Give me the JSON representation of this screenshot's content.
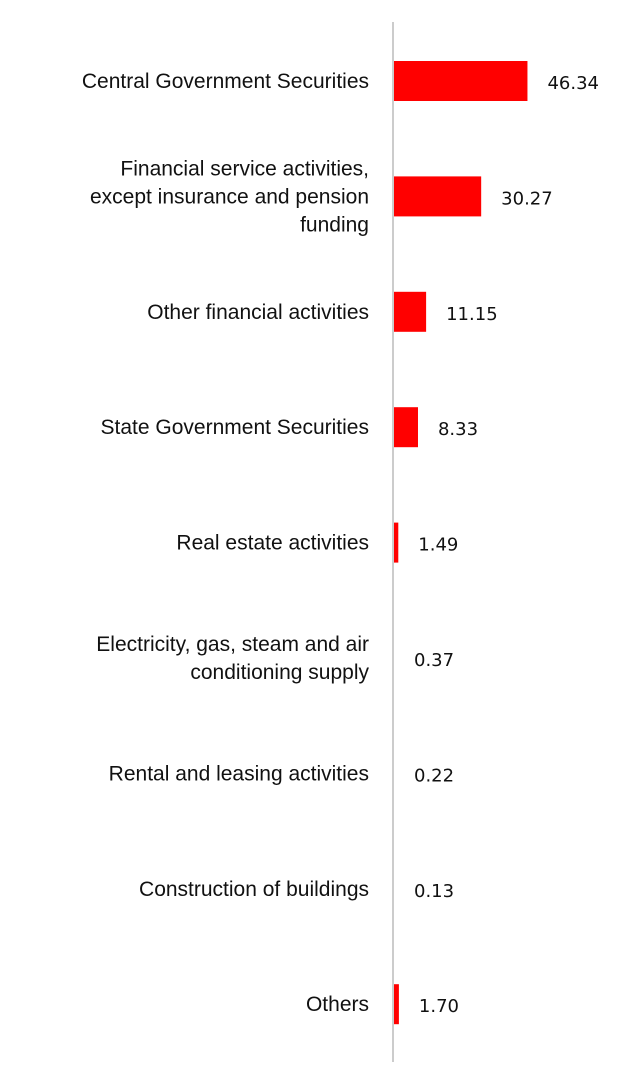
{
  "chart_data": {
    "type": "bar",
    "orientation": "horizontal",
    "title": "",
    "xlabel": "",
    "ylabel": "",
    "xlim": [
      0,
      50
    ],
    "grid": false,
    "legend": "none",
    "bar_color": "#ff0000",
    "axis_color": "#cccccc",
    "categories": [
      [
        "Central Government Securities"
      ],
      [
        "Financial service activities,",
        "except insurance and pension",
        "funding"
      ],
      [
        "Other financial activities"
      ],
      [
        "State Government Securities"
      ],
      [
        "Real estate activities"
      ],
      [
        "Electricity, gas, steam and air",
        "conditioning supply"
      ],
      [
        "Rental and leasing activities"
      ],
      [
        "Construction of buildings"
      ],
      [
        "Others"
      ]
    ],
    "values": [
      46.34,
      30.27,
      11.15,
      8.33,
      1.49,
      0.37,
      0.22,
      0.13,
      1.7
    ],
    "value_labels": [
      "46.34",
      "30.27",
      "11.15",
      "8.33",
      "1.49",
      "0.37",
      "0.22",
      "0.13",
      "1.70"
    ]
  }
}
